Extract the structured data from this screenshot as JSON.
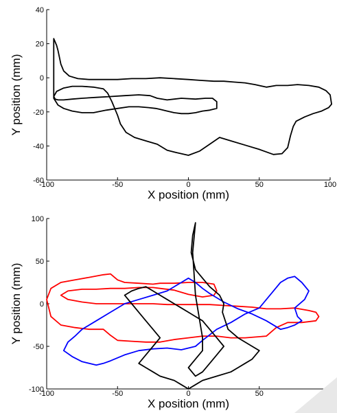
{
  "chart_data": [
    {
      "type": "line",
      "xlabel": "X position (mm)",
      "ylabel": "Y position (mm)",
      "xlim": [
        -100,
        100
      ],
      "ylim": [
        -60,
        40
      ],
      "xticks": [
        -100,
        -50,
        0,
        50,
        100
      ],
      "yticks": [
        -60,
        -40,
        -20,
        0,
        20,
        40
      ],
      "grid": false,
      "series": [
        {
          "color": "#000000",
          "x": [
            -95,
            -92,
            -88,
            -82,
            -75,
            -67,
            -58,
            -50,
            -42,
            -35,
            -28,
            -23,
            -20,
            -15,
            -10,
            -5,
            0,
            5,
            10,
            15,
            20,
            20,
            17,
            12,
            5,
            -5,
            -15,
            -22,
            -27,
            -35,
            -45,
            -55,
            -65,
            -75,
            -82,
            -88,
            -92,
            -94,
            -95,
            -93,
            -88,
            -82,
            -75,
            -67,
            -60,
            -57,
            -54,
            -50,
            -48,
            -44,
            -38,
            -30,
            -22,
            -15,
            -8,
            0,
            8,
            15,
            22,
            30,
            40,
            50,
            60,
            66,
            70,
            72,
            74,
            76,
            82,
            88,
            94,
            99,
            101,
            100,
            97,
            92,
            85,
            77,
            70,
            62,
            55,
            47,
            40,
            32,
            25,
            18,
            8,
            0,
            -10,
            -20,
            -30,
            -40,
            -50,
            -60,
            -70,
            -78,
            -84,
            -88,
            -90,
            -91,
            -92,
            -93,
            -94,
            -95
          ],
          "y": [
            -12,
            -16,
            -18,
            -19.5,
            -20.5,
            -20.5,
            -19,
            -18,
            -17,
            -17,
            -17.5,
            -18,
            -18.5,
            -19.5,
            -20.5,
            -21,
            -21,
            -20.5,
            -19.5,
            -19,
            -18,
            -14,
            -12,
            -12,
            -12.5,
            -12,
            -13,
            -12,
            -10.5,
            -10,
            -10.5,
            -11,
            -11.5,
            -12,
            -12.5,
            -13,
            -13,
            -12.5,
            -11,
            -8,
            -6,
            -5,
            -5,
            -5.5,
            -6.5,
            -9,
            -14,
            -22,
            -27,
            -32,
            -35,
            -37,
            -39,
            -42.5,
            -44,
            -45.5,
            -43,
            -39,
            -35,
            -37,
            -39.5,
            -42,
            -45,
            -44.5,
            -41,
            -34,
            -28.5,
            -25.5,
            -23,
            -21,
            -19.5,
            -17.5,
            -15.5,
            -10,
            -7.5,
            -5.5,
            -4.5,
            -4,
            -4.5,
            -4.5,
            -5.5,
            -4,
            -3,
            -2.5,
            -2,
            -2,
            -1.5,
            -1,
            -0.5,
            0,
            -0.5,
            -0.5,
            -1,
            -1,
            -1,
            -0.5,
            1,
            4,
            8,
            12,
            16,
            19,
            21,
            23
          ]
        }
      ]
    },
    {
      "type": "line",
      "xlabel": "X position (mm)",
      "ylabel": "Y position (mm)",
      "xlim": [
        -100,
        100
      ],
      "ylim": [
        -100,
        100
      ],
      "xticks": [
        -100,
        -50,
        0,
        50,
        100
      ],
      "yticks": [
        -100,
        -50,
        0,
        50,
        100
      ],
      "grid": false,
      "series": [
        {
          "color": "#ff0000",
          "x": [
            -100,
            -97,
            -90,
            -80,
            -70,
            -60,
            -55,
            -50,
            -45,
            -35,
            -25,
            -20,
            -10,
            0,
            10,
            18,
            20,
            18,
            10,
            0,
            -10,
            -20,
            -25,
            -35,
            -45,
            -55,
            -65,
            -75,
            -85,
            -90,
            -85,
            -75,
            -65,
            -55,
            -45,
            -35,
            -25,
            -15,
            -5,
            5,
            15,
            25,
            35,
            45,
            55,
            65,
            75,
            85,
            90,
            92,
            90,
            80,
            70,
            62,
            55,
            40,
            30,
            20,
            10,
            0,
            -10,
            -20,
            -30,
            -40,
            -50,
            -55,
            -60,
            -70,
            -80,
            -90,
            -97,
            -100
          ],
          "y": [
            5,
            18,
            25,
            28,
            31,
            34,
            35,
            28,
            25,
            24,
            23,
            24,
            24,
            25,
            25,
            23,
            15,
            10,
            8,
            11,
            16,
            18,
            19,
            19,
            18,
            18,
            17,
            17,
            15,
            10,
            5,
            2,
            0,
            0,
            0,
            0,
            0,
            -1,
            -1,
            -1,
            -1,
            -2,
            -3,
            -4,
            -6,
            -6,
            -5,
            -8,
            -10,
            -15,
            -20,
            -22,
            -22,
            -28,
            -38,
            -40,
            -40,
            -38,
            -38,
            -40,
            -42,
            -45,
            -45,
            -44,
            -43,
            -37,
            -30,
            -30,
            -28,
            -25,
            -15,
            5
          ]
        },
        {
          "color": "#0000ff",
          "x": [
            -88,
            -82,
            -75,
            -65,
            -60,
            -55,
            -45,
            -35,
            -25,
            -15,
            -5,
            5,
            10,
            20,
            30,
            40,
            50,
            55,
            60,
            65,
            70,
            75,
            80,
            85,
            82,
            75,
            77,
            80,
            75,
            70,
            65,
            55,
            45,
            35,
            25,
            15,
            10,
            5,
            0,
            -5,
            -15,
            -25,
            -35,
            -45,
            -55,
            -65,
            -75,
            -80,
            -85,
            -88
          ],
          "y": [
            -55,
            -62,
            -68,
            -72,
            -70,
            -67,
            -60,
            -55,
            -53,
            -52,
            -54,
            -50,
            -43,
            -30,
            -22,
            -12,
            -5,
            5,
            15,
            25,
            30,
            32,
            25,
            15,
            5,
            -5,
            -15,
            -20,
            -25,
            -28,
            -30,
            -20,
            -12,
            -6,
            2,
            12,
            18,
            25,
            30,
            25,
            15,
            10,
            5,
            0,
            -10,
            -20,
            -30,
            -38,
            -45,
            -55
          ]
        },
        {
          "color": "#000000",
          "x": [
            5,
            3,
            2,
            5,
            10,
            15,
            22,
            25,
            24,
            26,
            28,
            35,
            45,
            50,
            45,
            40,
            35,
            30,
            20,
            10,
            5,
            0,
            -5,
            -10,
            -20,
            -25,
            -30,
            -35,
            -30,
            -25,
            -20,
            -25,
            -30,
            -35,
            -40,
            -45,
            -40,
            -35,
            -30,
            -25,
            -20,
            -15,
            -10,
            -5,
            0,
            5,
            10,
            15,
            20,
            25,
            20,
            15,
            10,
            5,
            0,
            5,
            10,
            10,
            5,
            3,
            5
          ],
          "y": [
            95,
            80,
            60,
            40,
            30,
            20,
            10,
            0,
            -10,
            -20,
            -30,
            -40,
            -50,
            -55,
            -65,
            -70,
            -75,
            -80,
            -85,
            -90,
            -95,
            -100,
            -95,
            -90,
            -85,
            -80,
            -75,
            -70,
            -60,
            -50,
            -40,
            -30,
            -20,
            -10,
            0,
            10,
            15,
            18,
            20,
            15,
            10,
            5,
            0,
            -5,
            -10,
            -15,
            -20,
            -30,
            -40,
            -50,
            -60,
            -70,
            -80,
            -85,
            -75,
            -65,
            -55,
            -40,
            10,
            60,
            95
          ]
        }
      ]
    }
  ]
}
